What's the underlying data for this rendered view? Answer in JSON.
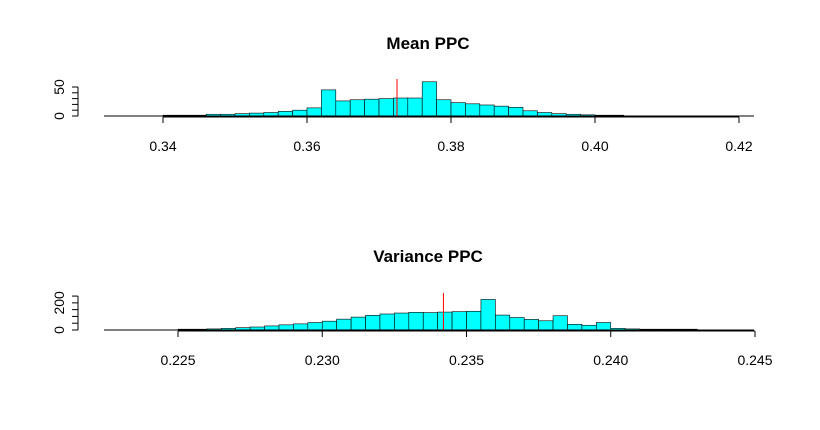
{
  "chart_data": [
    {
      "type": "bar",
      "title": "Mean PPC",
      "xlabel": "",
      "ylabel": "",
      "xlim": [
        0.332,
        0.422
      ],
      "x_ticks": [
        0.34,
        0.36,
        0.38,
        0.4,
        0.42
      ],
      "x_tick_labels": [
        "0.34",
        "0.36",
        "0.38",
        "0.40",
        "0.42"
      ],
      "y_ticks": [
        0,
        10,
        20,
        30,
        40,
        50
      ],
      "y_tick_labels": [
        "0",
        "50"
      ],
      "ylim": [
        0,
        60
      ],
      "bin_start": 0.332,
      "bin_width": 0.002,
      "values": [
        0,
        0,
        0,
        0,
        1,
        1,
        1,
        3,
        3,
        4,
        5,
        6,
        8,
        10,
        14,
        45,
        26,
        28,
        29,
        30,
        31,
        31,
        59,
        28,
        23,
        21,
        19,
        17,
        15,
        9,
        6,
        4,
        3,
        2,
        1,
        1,
        0,
        0,
        0,
        0,
        0,
        0,
        0,
        0,
        0
      ],
      "reference_line": 0.3725,
      "bar_color": "#00FFFF",
      "reference_line_color": "#FF0000"
    },
    {
      "type": "bar",
      "title": "Variance PPC",
      "xlabel": "",
      "ylabel": "",
      "xlim": [
        0.2225,
        0.2445
      ],
      "x_ticks": [
        0.225,
        0.23,
        0.235,
        0.24,
        0.245
      ],
      "x_tick_labels": [
        "0.225",
        "0.230",
        "0.235",
        "0.240",
        "0.245"
      ],
      "y_ticks": [
        0,
        50,
        100,
        150,
        200,
        250
      ],
      "y_tick_labels": [
        "0",
        "200"
      ],
      "ylim": [
        0,
        250
      ],
      "bin_start": 0.2225,
      "bin_width": 0.0005,
      "values": [
        0,
        0,
        0,
        0,
        0,
        3,
        5,
        8,
        12,
        17,
        22,
        30,
        38,
        45,
        55,
        65,
        80,
        95,
        108,
        118,
        125,
        130,
        128,
        132,
        135,
        138,
        225,
        110,
        92,
        78,
        68,
        105,
        42,
        35,
        55,
        12,
        8,
        5,
        3,
        2,
        1,
        0,
        0,
        0
      ],
      "reference_line": 0.2342,
      "bar_color": "#00FFFF",
      "reference_line_color": "#FF0000"
    }
  ]
}
